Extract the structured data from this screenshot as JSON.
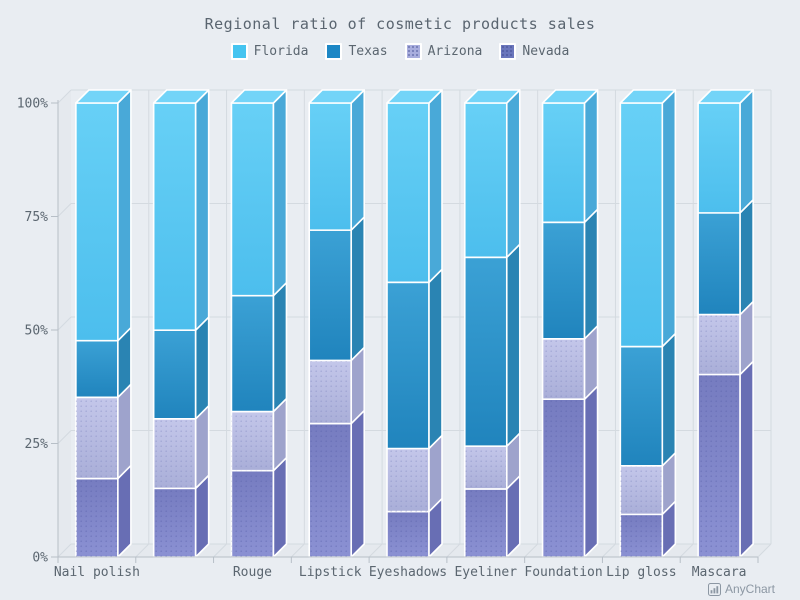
{
  "title": "Regional ratio of cosmetic products sales",
  "watermark": {
    "label": "AnyChart"
  },
  "colors": {
    "background": "#e9edf2",
    "title_text": "#5a6570",
    "axis_text": "#5b6670",
    "axis_line": "#b7bfc7",
    "grid_line": "#d4dae0",
    "wall_fill": "#e2e7ec",
    "watermark_text": "#8c97a3"
  },
  "chart_data": {
    "type": "bar",
    "subtype": "3d-percent-stacked-column",
    "stacking": "percent",
    "title": "Regional ratio of cosmetic products sales",
    "categories": [
      "Nail polish",
      "",
      "Rouge",
      "Lipstick",
      "Eyeshadows",
      "Eyeliner",
      "Foundation",
      "Lip gloss",
      "Mascara"
    ],
    "series": [
      {
        "name": "Florida",
        "color": "#45c4f0",
        "front": [
          "#67d0f6",
          "#4cbeed"
        ],
        "side": "#49a9d8",
        "top": "#73d4f8",
        "hatched": false,
        "values": [
          52.4,
          50.0,
          42.4,
          28.0,
          39.5,
          34.0,
          26.3,
          53.7,
          24.2
        ]
      },
      {
        "name": "Texas",
        "color": "#1d87c5",
        "front": [
          "#3ba1d5",
          "#2084bd"
        ],
        "side": "#2a84b3",
        "top": "#44a8da",
        "hatched": false,
        "values": [
          12.5,
          19.5,
          25.5,
          28.7,
          36.6,
          41.6,
          25.7,
          26.3,
          22.4
        ]
      },
      {
        "name": "Arizona",
        "color": "#a9aede",
        "front": [
          "#c4c7ea",
          "#a9aed8"
        ],
        "side": "#9ea3cc",
        "top": "#c9ccec",
        "hatched": true,
        "hatch_color": "#7d84bd",
        "values": [
          17.9,
          15.3,
          13.0,
          13.9,
          13.9,
          9.4,
          13.3,
          10.7,
          13.2
        ]
      },
      {
        "name": "Nevada",
        "color": "#6b77bc",
        "front": [
          "#767cc0",
          "#8b91d3"
        ],
        "side": "#686eb4",
        "top": "#8e93d4",
        "hatched": true,
        "hatch_color": "#555ca8",
        "values": [
          17.3,
          15.1,
          19.0,
          29.4,
          10.0,
          15.0,
          34.8,
          9.4,
          40.2
        ]
      }
    ],
    "stack_order_bottom_to_top": [
      "Nevada",
      "Arizona",
      "Texas",
      "Florida"
    ],
    "xlabel": "",
    "ylabel": "",
    "y_ticks": [
      0,
      25,
      50,
      75,
      100
    ],
    "y_tick_labels": [
      "0%",
      "25%",
      "50%",
      "75%",
      "100%"
    ],
    "ylim": [
      0,
      100
    ],
    "grid": true,
    "legend_position": "top"
  }
}
